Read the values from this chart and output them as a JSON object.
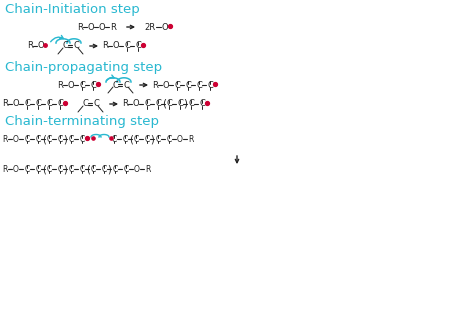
{
  "bg_color": "#ffffff",
  "cyan_color": "#29b8d0",
  "black_color": "#222222",
  "red_color": "#cc0033",
  "title1": "Chain-Initiation step",
  "title2": "Chain-propagating step",
  "title3": "Chain-terminating step",
  "figsize": [
    4.74,
    3.17
  ],
  "dpi": 100
}
